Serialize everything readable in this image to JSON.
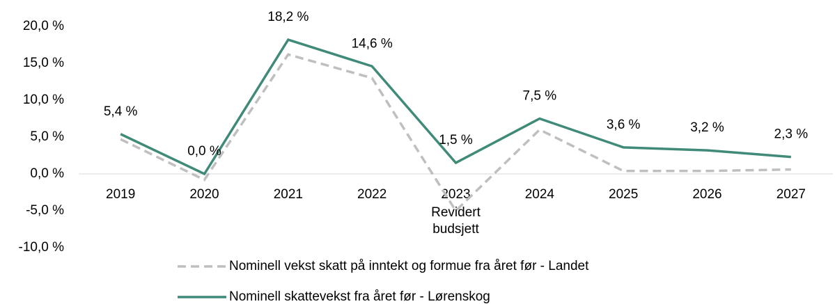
{
  "chart_data": {
    "type": "line",
    "categories": [
      "2019",
      "2020",
      "2021",
      "2022",
      "2023",
      "2024",
      "2025",
      "2026",
      "2027"
    ],
    "annotations": [
      "Revidert",
      "budsjett"
    ],
    "series": [
      {
        "name": "Nominell vekst skatt på inntekt og formue fra året før - Landet",
        "color": "#bfbfbf",
        "dashed": true,
        "values": [
          4.7,
          -0.8,
          16.2,
          13.0,
          -5.0,
          6.0,
          0.4,
          0.4,
          0.6
        ]
      },
      {
        "name": "Nominell skattevekst fra året før - Lørenskog",
        "color": "#3f8a78",
        "dashed": false,
        "values": [
          5.4,
          0.0,
          18.2,
          14.6,
          1.5,
          7.5,
          3.6,
          3.2,
          2.3
        ],
        "value_labels": [
          "5,4 %",
          "0,0 %",
          "18,2 %",
          "14,6 %",
          "1,5 %",
          "7,5 %",
          "3,6 %",
          "3,2 %",
          "2,3 %"
        ]
      }
    ],
    "ylim": [
      -10,
      20
    ],
    "yticks": [
      {
        "value": -10,
        "label": "-10,0 %"
      },
      {
        "value": -5,
        "label": "-5,0 %"
      },
      {
        "value": 0,
        "label": "0,0 %"
      },
      {
        "value": 5,
        "label": "5,0 %"
      },
      {
        "value": 10,
        "label": "10,0 %"
      },
      {
        "value": 15,
        "label": "15,0 %"
      },
      {
        "value": 20,
        "label": "20,0 %"
      }
    ],
    "grid": false
  }
}
